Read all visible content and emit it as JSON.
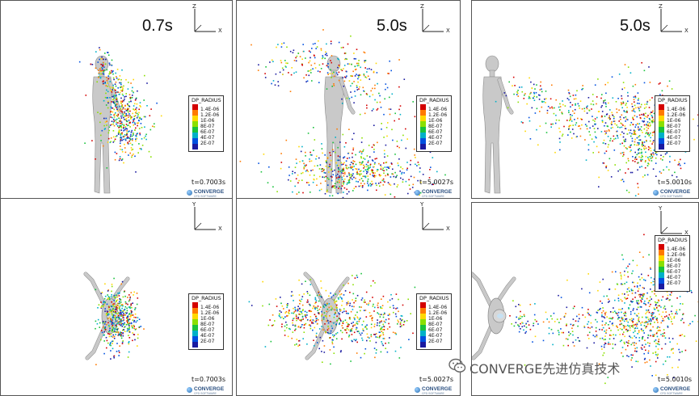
{
  "panels": [
    {
      "time_label": "0.7s",
      "stamp": "t=0.7003s",
      "axis_v": "Z",
      "axis_h": "X"
    },
    {
      "time_label": "5.0s",
      "stamp": "t=5.0027s",
      "axis_v": "Z",
      "axis_h": "X"
    },
    {
      "time_label": "5.0s",
      "stamp": "t=5.0010s",
      "axis_v": "Z",
      "axis_h": "X"
    },
    {
      "time_label": "",
      "stamp": "t=0.7003s",
      "axis_v": "Y",
      "axis_h": "X"
    },
    {
      "time_label": "",
      "stamp": "t=5.0027s",
      "axis_v": "Y",
      "axis_h": "X"
    },
    {
      "time_label": "",
      "stamp": "t=5.0010s",
      "axis_v": "Y",
      "axis_h": "X"
    }
  ],
  "legend": {
    "title": "DP_RADIUS",
    "ticks": [
      "1.4E-06",
      "1.2E-06",
      "1E-06",
      "8E-07",
      "6E-07",
      "4E-07",
      "2E-07"
    ],
    "colors": [
      "#d40000",
      "#ff7a00",
      "#ffd800",
      "#8ae000",
      "#19c23c",
      "#00b0c8",
      "#0050e0",
      "#1a1aa0"
    ]
  },
  "logo": {
    "name": "CONVERGE",
    "tagline": "CFD SOFTWARE"
  },
  "watermark": {
    "text": "CONVERGE先进仿真技术",
    "icon": "wechat-icon"
  }
}
